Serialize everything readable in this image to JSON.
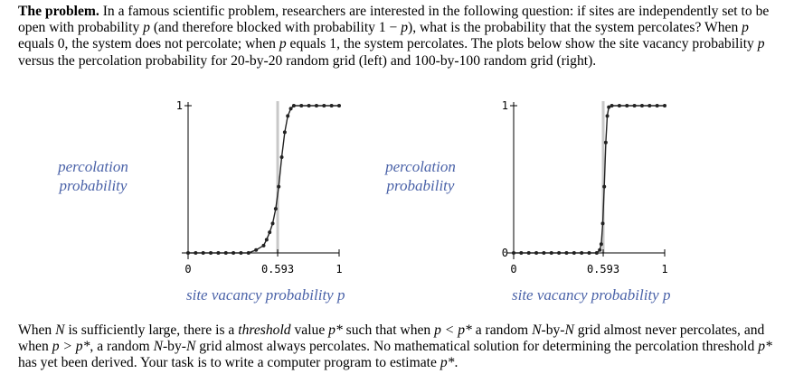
{
  "intro": {
    "t1": "The problem.",
    "t2": " In a famous scientific problem, researchers are interested in the following question: if sites are independently set to be open with probability ",
    "t3": "p",
    "t4": " (and therefore blocked with probability 1 − ",
    "t5": "p",
    "t6": "), what is the probability that the system percolates? When ",
    "t7": "p",
    "t8": " equals 0, the system does not percolate; when ",
    "t9": "p",
    "t10": " equals 1, the system percolates. The plots below show the site vacancy probability ",
    "t11": "p",
    "t12": " versus the percolation probability for 20-by-20 random grid (left) and 100-by-100 random grid (right)."
  },
  "outro": {
    "t1": "When ",
    "t2": "N",
    "t3": " is sufficiently large, there is a ",
    "t4": "threshold",
    "t5": " value ",
    "t6": "p*",
    "t7": " such that when ",
    "t8": "p < p*",
    "t9": " a random ",
    "t10": "N",
    "t11": "-by-",
    "t12": "N",
    "t13": " grid almost never percolates, and when ",
    "t14": "p > p*",
    "t15": ", a random ",
    "t16": "N",
    "t17": "-by-",
    "t18": "N",
    "t19": " grid almost always percolates. No mathematical solution for determining the percolation threshold ",
    "t20": "p*",
    "t21": " has yet been derived. Your task is to write a computer program to estimate ",
    "t22": "p*",
    "t23": "."
  },
  "colors": {
    "label": "#4a62a8",
    "threshold_line": "#c8c8c8",
    "curve": "#222222"
  },
  "chart_data": [
    {
      "type": "line",
      "ylabel_line1": "percolation",
      "ylabel_line2": "probability",
      "xlabel": "site vacancy probability p",
      "xticks": [
        "0",
        "0.593",
        "1"
      ],
      "yticks": [
        "1"
      ],
      "xlim": [
        0,
        1
      ],
      "ylim": [
        0,
        1
      ],
      "threshold": 0.593,
      "x": [
        0,
        0.05,
        0.1,
        0.15,
        0.2,
        0.25,
        0.3,
        0.35,
        0.4,
        0.45,
        0.5,
        0.52,
        0.54,
        0.56,
        0.58,
        0.6,
        0.62,
        0.64,
        0.66,
        0.68,
        0.7,
        0.75,
        0.8,
        0.85,
        0.9,
        0.95,
        1
      ],
      "y": [
        0,
        0,
        0,
        0,
        0,
        0,
        0,
        0,
        0,
        0.02,
        0.05,
        0.09,
        0.14,
        0.2,
        0.3,
        0.45,
        0.65,
        0.82,
        0.93,
        0.98,
        1,
        1,
        1,
        1,
        1,
        1,
        1
      ]
    },
    {
      "type": "line",
      "ylabel_line1": "percolation",
      "ylabel_line2": "probability",
      "xlabel": "site vacancy probability p",
      "xticks": [
        "0",
        "0.593",
        "1"
      ],
      "yticks": [
        "0",
        "1"
      ],
      "xlim": [
        0,
        1
      ],
      "ylim": [
        0,
        1
      ],
      "threshold": 0.593,
      "x": [
        0,
        0.05,
        0.1,
        0.15,
        0.2,
        0.25,
        0.3,
        0.35,
        0.4,
        0.45,
        0.5,
        0.55,
        0.57,
        0.58,
        0.59,
        0.6,
        0.61,
        0.62,
        0.63,
        0.65,
        0.7,
        0.75,
        0.8,
        0.85,
        0.9,
        0.95,
        1
      ],
      "y": [
        0,
        0,
        0,
        0,
        0,
        0,
        0,
        0,
        0,
        0,
        0,
        0,
        0.02,
        0.06,
        0.2,
        0.45,
        0.75,
        0.93,
        0.99,
        1,
        1,
        1,
        1,
        1,
        1,
        1,
        1
      ]
    }
  ]
}
